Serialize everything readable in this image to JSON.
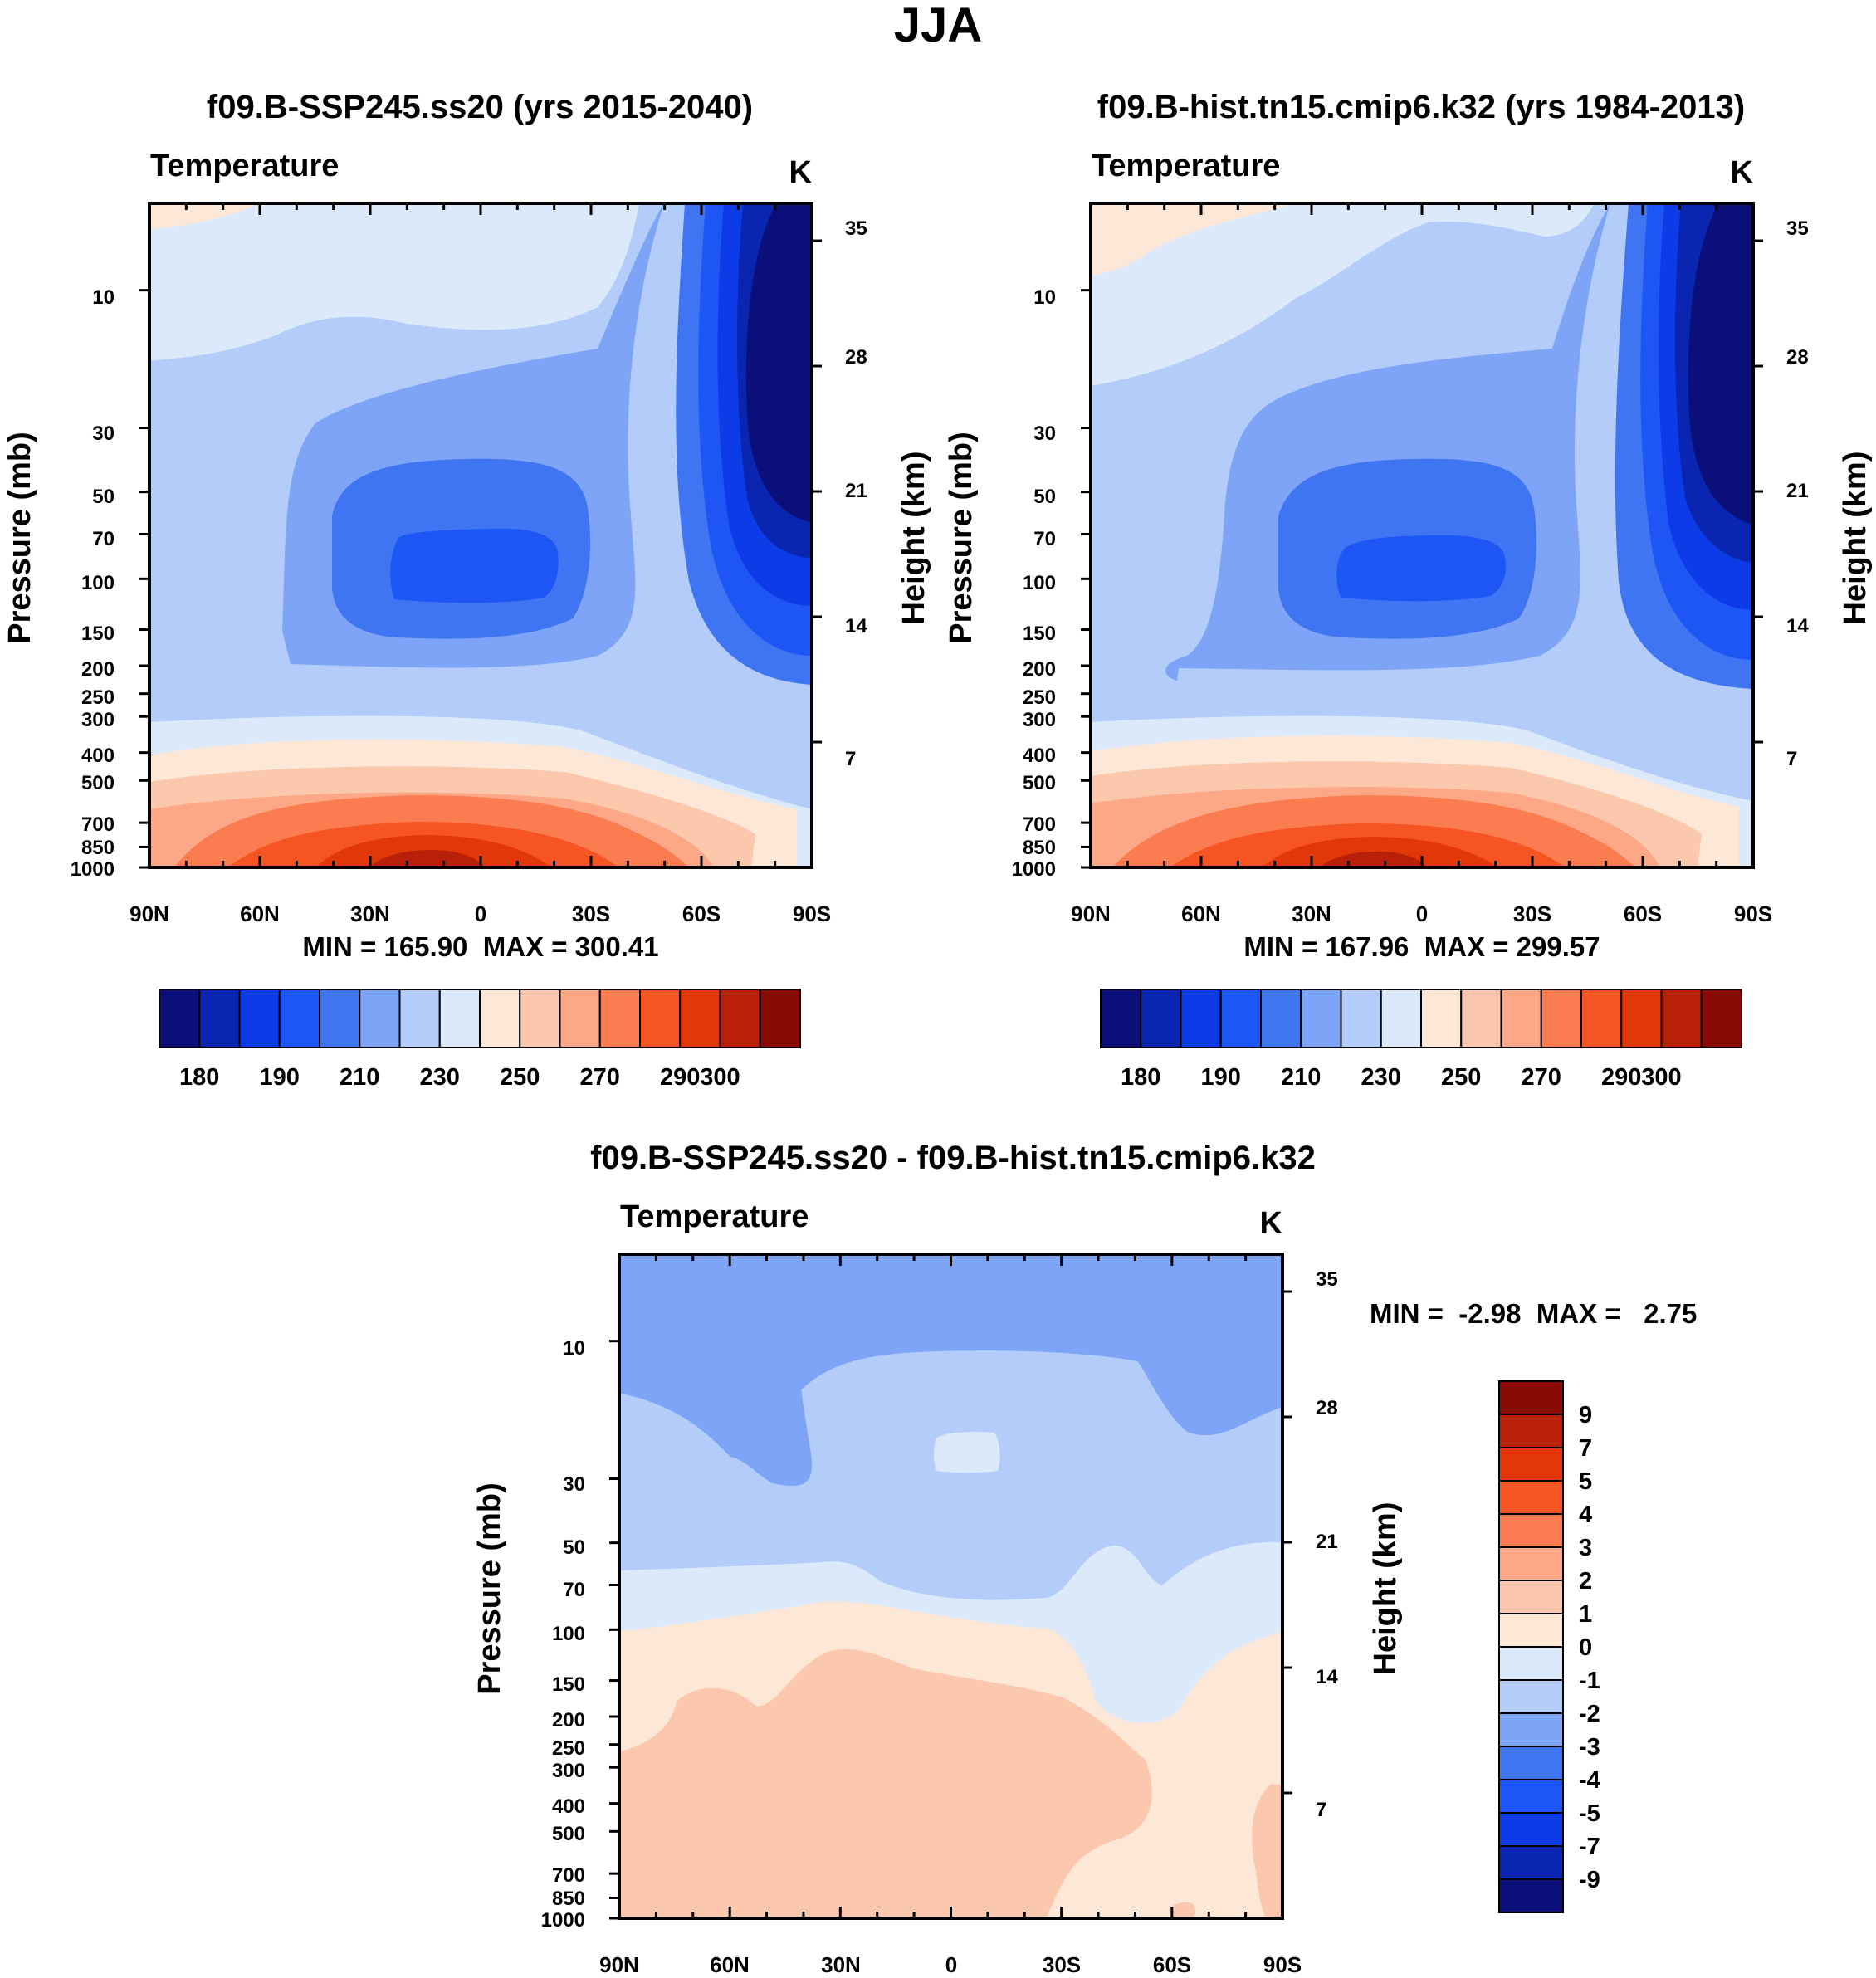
{
  "figure_title": "JJA",
  "chart_data": [
    {
      "type": "heatmap",
      "title": "f09.B-SSP245.ss20 (yrs 2015-2040)",
      "subtitle_left": "Temperature",
      "subtitle_right": "K",
      "ylabel": "Pressure (mb)",
      "ylabel_right": "Height (km)",
      "x_ticks": [
        "90N",
        "60N",
        "30N",
        "0",
        "30S",
        "60S",
        "90S"
      ],
      "x_values": [
        90,
        60,
        30,
        0,
        -30,
        -60,
        -90
      ],
      "y_ticks": [
        "10",
        "30",
        "50",
        "70",
        "100",
        "150",
        "200",
        "250",
        "300",
        "400",
        "500",
        "700",
        "850",
        "1000"
      ],
      "y_values": [
        10,
        30,
        50,
        70,
        100,
        150,
        200,
        250,
        300,
        400,
        500,
        700,
        850,
        1000
      ],
      "y_right_ticks": [
        "35",
        "28",
        "21",
        "14",
        "7"
      ],
      "y_right_values": [
        35,
        28,
        21,
        14,
        7
      ],
      "ylim": [
        5,
        1000
      ],
      "stats": "MIN = 165.90  MAX = 300.41",
      "min": 165.9,
      "max": 300.41,
      "colorbar_labels": [
        "180",
        "190",
        "210",
        "230",
        "250",
        "270",
        "290",
        "300"
      ],
      "colorbar_label_slots": [
        1,
        3,
        5,
        7,
        9,
        11,
        13,
        14
      ]
    },
    {
      "type": "heatmap",
      "title": "f09.B-hist.tn15.cmip6.k32 (yrs 1984-2013)",
      "subtitle_left": "Temperature",
      "subtitle_right": "K",
      "ylabel": "Pressure (mb)",
      "ylabel_right": "Height (km)",
      "x_ticks": [
        "90N",
        "60N",
        "30N",
        "0",
        "30S",
        "60S",
        "90S"
      ],
      "x_values": [
        90,
        60,
        30,
        0,
        -30,
        -60,
        -90
      ],
      "y_ticks": [
        "10",
        "30",
        "50",
        "70",
        "100",
        "150",
        "200",
        "250",
        "300",
        "400",
        "500",
        "700",
        "850",
        "1000"
      ],
      "y_values": [
        10,
        30,
        50,
        70,
        100,
        150,
        200,
        250,
        300,
        400,
        500,
        700,
        850,
        1000
      ],
      "y_right_ticks": [
        "35",
        "28",
        "21",
        "14",
        "7"
      ],
      "y_right_values": [
        35,
        28,
        21,
        14,
        7
      ],
      "ylim": [
        5,
        1000
      ],
      "stats": "MIN = 167.96  MAX = 299.57",
      "min": 167.96,
      "max": 299.57,
      "colorbar_labels": [
        "180",
        "190",
        "210",
        "230",
        "250",
        "270",
        "290",
        "300"
      ],
      "colorbar_label_slots": [
        1,
        3,
        5,
        7,
        9,
        11,
        13,
        14
      ]
    },
    {
      "type": "heatmap",
      "title": "f09.B-SSP245.ss20 - f09.B-hist.tn15.cmip6.k32",
      "subtitle_left": "Temperature",
      "subtitle_right": "K",
      "ylabel": "Pressure (mb)",
      "ylabel_right": "Height (km)",
      "x_ticks": [
        "90N",
        "60N",
        "30N",
        "0",
        "30S",
        "60S",
        "90S"
      ],
      "x_values": [
        90,
        60,
        30,
        0,
        -30,
        -60,
        -90
      ],
      "y_ticks": [
        "10",
        "30",
        "50",
        "70",
        "100",
        "150",
        "200",
        "250",
        "300",
        "400",
        "500",
        "700",
        "850",
        "1000"
      ],
      "y_values": [
        10,
        30,
        50,
        70,
        100,
        150,
        200,
        250,
        300,
        400,
        500,
        700,
        850,
        1000
      ],
      "y_right_ticks": [
        "35",
        "28",
        "21",
        "14",
        "7"
      ],
      "y_right_values": [
        35,
        28,
        21,
        14,
        7
      ],
      "ylim": [
        5,
        1000
      ],
      "stats": "MIN =  -2.98  MAX =   2.75",
      "min": -2.98,
      "max": 2.75,
      "colorbar_labels": [
        "9",
        "7",
        "5",
        "4",
        "3",
        "2",
        "1",
        "0",
        "-1",
        "-2",
        "-3",
        "-4",
        "-5",
        "-7",
        "-9"
      ]
    }
  ],
  "colors": {
    "scale": [
      "#0a0f7a",
      "#0a26b0",
      "#0d3be8",
      "#1e55f5",
      "#3f74f2",
      "#7ea4f7",
      "#b3ccfa",
      "#dbe9fb",
      "#fde8d8",
      "#fcc8ad",
      "#fca887",
      "#fb7c50",
      "#f65423",
      "#e23708",
      "#b8200a",
      "#8a0a08"
    ]
  }
}
